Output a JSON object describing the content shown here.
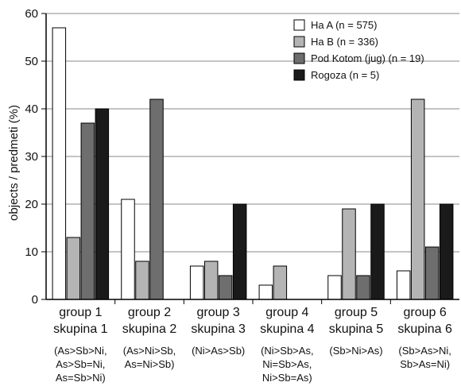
{
  "chart_data": {
    "type": "bar",
    "ylabel": "objects / predmeti (%)",
    "ylim": [
      0,
      60
    ],
    "yticks": [
      0,
      10,
      20,
      30,
      40,
      50,
      60
    ],
    "grid": "horizontal",
    "legend_position": "top-right",
    "categories": [
      {
        "label1": "group 1",
        "label2": "skupina 1",
        "notes": [
          "(As>Sb>Ni,",
          "As>Sb=Ni,",
          "As=Sb>Ni)"
        ]
      },
      {
        "label1": "group 2",
        "label2": "skupina 2",
        "notes": [
          "(As>Ni>Sb,",
          "As=Ni>Sb)"
        ]
      },
      {
        "label1": "group 3",
        "label2": "skupina 3",
        "notes": [
          "(Ni>As>Sb)"
        ]
      },
      {
        "label1": "group 4",
        "label2": "skupina 4",
        "notes": [
          "(Ni>Sb>As,",
          "Ni=Sb>As,",
          "Ni>Sb=As)"
        ]
      },
      {
        "label1": "group 5",
        "label2": "skupina 5",
        "notes": [
          "(Sb>Ni>As)"
        ]
      },
      {
        "label1": "group 6",
        "label2": "skupina 6",
        "notes": [
          "(Sb>As>Ni,",
          "Sb>As=Ni)"
        ]
      }
    ],
    "series": [
      {
        "name": "Ha A (n = 575)",
        "color": "#ffffff",
        "values": [
          57,
          21,
          7,
          3,
          5,
          6
        ]
      },
      {
        "name": "Ha B (n = 336)",
        "color": "#b4b4b4",
        "values": [
          13,
          8,
          8,
          7,
          19,
          42
        ]
      },
      {
        "name": "Pod Kotom (jug) (n = 19)",
        "color": "#6e6e6e",
        "values": [
          37,
          42,
          5,
          0,
          5,
          11
        ]
      },
      {
        "name": "Rogoza (n = 5)",
        "color": "#1a1a1a",
        "values": [
          40,
          0,
          20,
          0,
          20,
          20
        ]
      }
    ]
  }
}
